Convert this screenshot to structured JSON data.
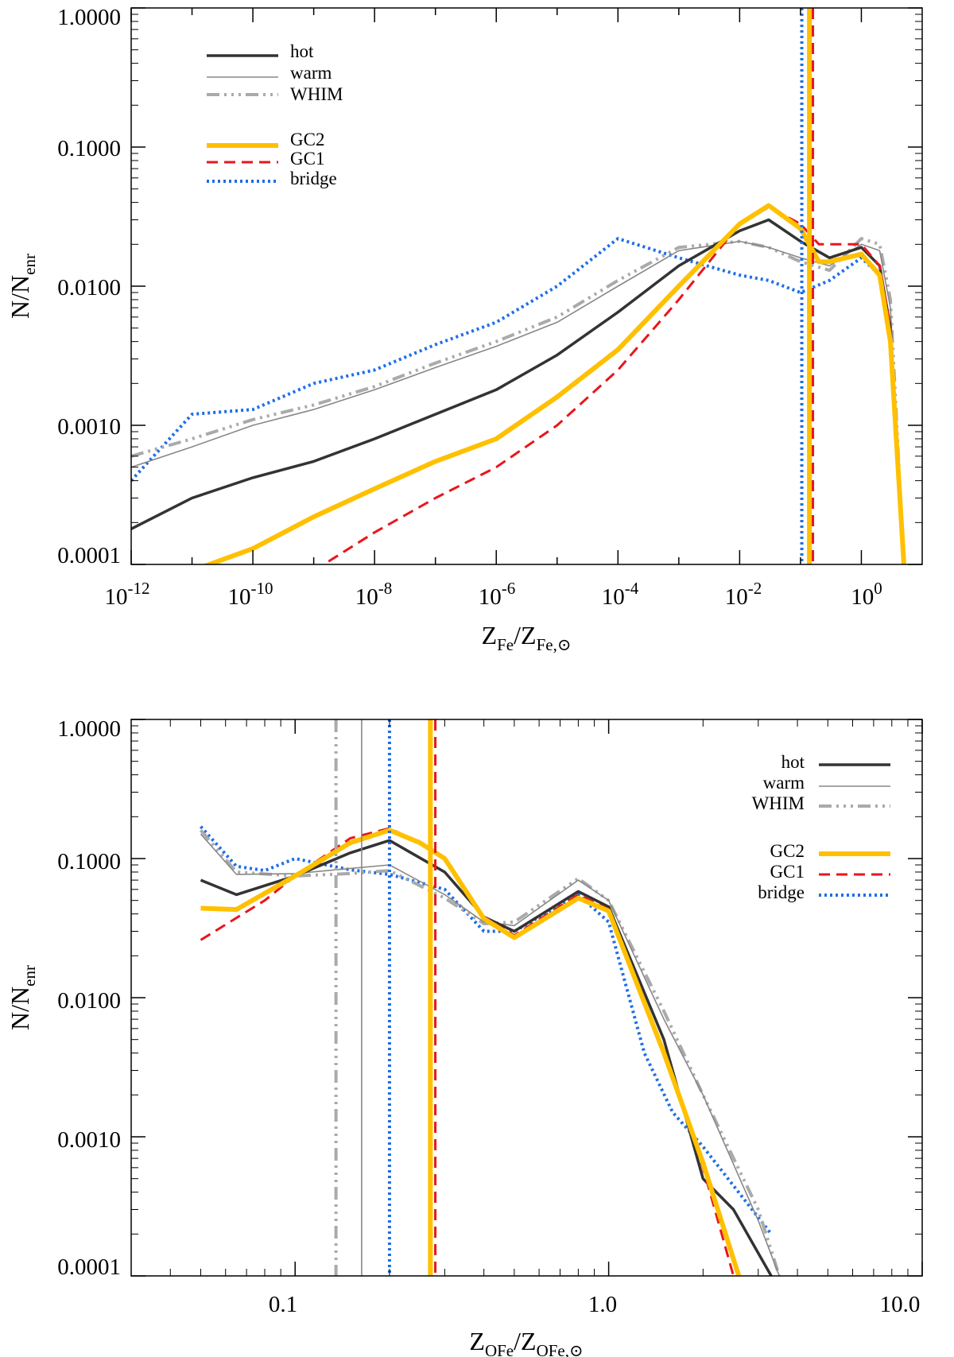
{
  "colors": {
    "hot": "#333333",
    "warm": "#888888",
    "WHIM": "#aaaaaa",
    "GC2": "#ffc000",
    "GC1": "#e8161c",
    "bridge": "#1e6ee8",
    "axis": "#000000"
  },
  "chart_data": [
    {
      "type": "line",
      "xscale": "log",
      "yscale": "log",
      "xlim": [
        1e-12,
        10
      ],
      "ylim": [
        0.0001,
        1.0
      ],
      "xlabel_main": "Z",
      "xlabel_sub1": "Fe",
      "xlabel_slash": "/Z",
      "xlabel_sub2": "Fe,⊙",
      "ylabel_main": "N/N",
      "ylabel_sub": "enr",
      "x_tick_labels": [
        {
          "base": "10",
          "exp": "-12"
        },
        {
          "base": "10",
          "exp": "-10"
        },
        {
          "base": "10",
          "exp": "-8"
        },
        {
          "base": "10",
          "exp": "-6"
        },
        {
          "base": "10",
          "exp": "-4"
        },
        {
          "base": "10",
          "exp": "-2"
        },
        {
          "base": "10",
          "exp": "0"
        }
      ],
      "y_tick_labels": [
        "0.0001",
        "0.0010",
        "0.0100",
        "0.1000",
        "1.0000"
      ],
      "legend": {
        "position": "top-left",
        "group1": [
          "hot",
          "warm",
          "WHIM"
        ],
        "group2": [
          "GC2",
          "GC1",
          "bridge"
        ]
      },
      "vlines": [
        {
          "name": "bridge",
          "x": 0.105
        },
        {
          "name": "GC2",
          "x": 0.14
        },
        {
          "name": "GC1",
          "x": 0.16
        }
      ],
      "series": [
        {
          "name": "hot",
          "x": [
            1e-12,
            1e-11,
            1e-10,
            1e-09,
            1e-08,
            1e-07,
            1e-06,
            1e-05,
            0.0001,
            0.001,
            0.01,
            0.03,
            0.1,
            0.3,
            1,
            2,
            3,
            5
          ],
          "y": [
            0.00018,
            0.0003,
            0.00042,
            0.00055,
            0.0008,
            0.0012,
            0.0018,
            0.0032,
            0.0065,
            0.014,
            0.025,
            0.03,
            0.021,
            0.016,
            0.019,
            0.014,
            0.005,
            0.0001
          ]
        },
        {
          "name": "warm",
          "x": [
            1e-12,
            1e-11,
            1e-10,
            1e-09,
            1e-08,
            1e-07,
            1e-06,
            1e-05,
            0.0001,
            0.001,
            0.01,
            0.03,
            0.1,
            0.3,
            1,
            2,
            3,
            5
          ],
          "y": [
            0.0005,
            0.0007,
            0.001,
            0.0013,
            0.0018,
            0.0026,
            0.0037,
            0.0055,
            0.01,
            0.018,
            0.021,
            0.019,
            0.016,
            0.014,
            0.02,
            0.018,
            0.007,
            0.0001
          ]
        },
        {
          "name": "WHIM",
          "x": [
            1e-12,
            1e-11,
            1e-10,
            1e-09,
            1e-08,
            1e-07,
            1e-06,
            1e-05,
            0.0001,
            0.001,
            0.01,
            0.03,
            0.1,
            0.3,
            1,
            2,
            3,
            5
          ],
          "y": [
            0.0006,
            0.0008,
            0.0011,
            0.0014,
            0.0019,
            0.0028,
            0.004,
            0.006,
            0.011,
            0.019,
            0.021,
            0.019,
            0.015,
            0.013,
            0.022,
            0.02,
            0.008,
            0.0001
          ]
        },
        {
          "name": "GC2",
          "x": [
            1e-11,
            1e-10,
            1e-09,
            1e-08,
            1e-07,
            1e-06,
            1e-05,
            0.0001,
            0.001,
            0.01,
            0.03,
            0.1,
            0.2,
            0.3,
            1,
            2,
            3,
            5
          ],
          "y": [
            9e-05,
            0.00013,
            0.00022,
            0.00035,
            0.00055,
            0.0008,
            0.0016,
            0.0035,
            0.01,
            0.028,
            0.038,
            0.026,
            0.015,
            0.015,
            0.017,
            0.012,
            0.004,
            0.0001
          ]
        },
        {
          "name": "GC1",
          "x": [
            1e-09,
            1e-08,
            1e-07,
            1e-06,
            1e-05,
            0.0001,
            0.001,
            0.01,
            0.03,
            0.1,
            0.2,
            0.3,
            1,
            2,
            3,
            5
          ],
          "y": [
            9e-05,
            0.00017,
            0.0003,
            0.0005,
            0.001,
            0.0025,
            0.008,
            0.028,
            0.037,
            0.028,
            0.02,
            0.02,
            0.02,
            0.014,
            0.005,
            0.0001
          ]
        },
        {
          "name": "bridge",
          "x": [
            1e-12,
            1e-11,
            1e-10,
            1e-09,
            1e-08,
            1e-07,
            1e-06,
            1e-05,
            0.0001,
            0.001,
            0.01,
            0.03,
            0.1,
            0.3,
            1,
            2,
            3,
            5
          ],
          "y": [
            0.0004,
            0.0012,
            0.0013,
            0.002,
            0.0025,
            0.0038,
            0.0055,
            0.01,
            0.022,
            0.016,
            0.012,
            0.011,
            0.009,
            0.011,
            0.016,
            0.012,
            0.004,
            0.0001
          ]
        }
      ]
    },
    {
      "type": "line",
      "xscale": "log",
      "yscale": "log",
      "xlim": [
        0.03,
        10
      ],
      "ylim": [
        0.0001,
        1.0
      ],
      "xlabel_main": "Z",
      "xlabel_sub1": "OFe",
      "xlabel_slash": "/Z",
      "xlabel_sub2": "OFe,⊙",
      "ylabel_main": "N/N",
      "ylabel_sub": "enr",
      "x_ticks": [
        0.1,
        1.0,
        10.0
      ],
      "x_tick_labels": [
        "0.1",
        "1.0",
        "10.0"
      ],
      "y_tick_labels": [
        "0.0001",
        "0.0010",
        "0.0100",
        "0.1000",
        "1.0000"
      ],
      "legend": {
        "position": "top-right",
        "group1": [
          "hot",
          "warm",
          "WHIM"
        ],
        "group2": [
          "GC2",
          "GC1",
          "bridge"
        ]
      },
      "vlines": [
        {
          "name": "WHIM",
          "x": 0.135
        },
        {
          "name": "warm",
          "x": 0.163
        },
        {
          "name": "bridge",
          "x": 0.2
        },
        {
          "name": "GC2",
          "x": 0.27
        },
        {
          "name": "GC1",
          "x": 0.28
        }
      ],
      "series": [
        {
          "name": "hot",
          "x": [
            0.05,
            0.065,
            0.1,
            0.15,
            0.2,
            0.3,
            0.4,
            0.5,
            0.8,
            1.0,
            1.5,
            2.0,
            2.5,
            3.3
          ],
          "y": [
            0.07,
            0.055,
            0.075,
            0.11,
            0.135,
            0.08,
            0.038,
            0.03,
            0.058,
            0.045,
            0.005,
            0.0005,
            0.0003,
            0.0001
          ]
        },
        {
          "name": "warm",
          "x": [
            0.05,
            0.065,
            0.1,
            0.15,
            0.2,
            0.3,
            0.4,
            0.5,
            0.8,
            1.0,
            1.5,
            2.0,
            3.0,
            3.5
          ],
          "y": [
            0.15,
            0.077,
            0.078,
            0.085,
            0.09,
            0.055,
            0.035,
            0.033,
            0.07,
            0.05,
            0.007,
            0.002,
            0.00025,
            0.0001
          ]
        },
        {
          "name": "WHIM",
          "x": [
            0.05,
            0.065,
            0.1,
            0.15,
            0.2,
            0.3,
            0.4,
            0.5,
            0.8,
            1.0,
            1.5,
            2.0,
            3.0,
            3.5
          ],
          "y": [
            0.16,
            0.08,
            0.075,
            0.078,
            0.082,
            0.052,
            0.034,
            0.035,
            0.072,
            0.05,
            0.008,
            0.002,
            0.0003,
            0.0001
          ]
        },
        {
          "name": "GC2",
          "x": [
            0.05,
            0.065,
            0.1,
            0.15,
            0.2,
            0.25,
            0.3,
            0.4,
            0.5,
            0.8,
            1.0,
            1.5,
            2.0,
            2.6
          ],
          "y": [
            0.044,
            0.043,
            0.075,
            0.13,
            0.16,
            0.13,
            0.1,
            0.037,
            0.027,
            0.052,
            0.042,
            0.004,
            0.00065,
            0.0001
          ]
        },
        {
          "name": "GC1",
          "x": [
            0.05,
            0.08,
            0.1,
            0.15,
            0.2,
            0.25,
            0.3,
            0.4,
            0.5,
            0.8,
            1.0,
            1.5,
            2.0,
            2.5
          ],
          "y": [
            0.026,
            0.05,
            0.075,
            0.14,
            0.165,
            0.13,
            0.1,
            0.038,
            0.028,
            0.055,
            0.043,
            0.004,
            0.0006,
            0.0001
          ]
        },
        {
          "name": "bridge",
          "x": [
            0.05,
            0.065,
            0.08,
            0.1,
            0.15,
            0.2,
            0.3,
            0.4,
            0.5,
            0.8,
            1.0,
            1.3,
            1.6,
            2.0,
            3.3
          ],
          "y": [
            0.17,
            0.088,
            0.082,
            0.1,
            0.083,
            0.077,
            0.06,
            0.03,
            0.03,
            0.055,
            0.035,
            0.004,
            0.0015,
            0.00085,
            0.0002
          ]
        }
      ]
    }
  ]
}
